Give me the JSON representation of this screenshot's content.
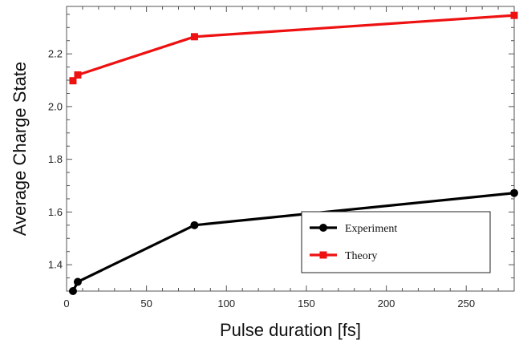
{
  "chart_data": {
    "type": "line",
    "xlabel": "Pulse duration [fs]",
    "ylabel": "Average Charge State",
    "xlim": [
      0,
      280
    ],
    "ylim": [
      1.3,
      2.38
    ],
    "x_ticks": [
      0,
      50,
      100,
      150,
      200,
      250
    ],
    "y_ticks": [
      1.4,
      1.6,
      1.8,
      2.0,
      2.2
    ],
    "grid": false,
    "legend_position": "bottom-right",
    "series": [
      {
        "name": "Experiment",
        "color": "#000000",
        "marker": "circle",
        "x": [
          4,
          7,
          80,
          280
        ],
        "y": [
          1.3,
          1.335,
          1.55,
          1.672
        ]
      },
      {
        "name": "Theory",
        "color": "#ee1111",
        "marker": "square",
        "x": [
          4,
          7,
          80,
          280
        ],
        "y": [
          2.098,
          2.12,
          2.265,
          2.346
        ]
      }
    ]
  }
}
